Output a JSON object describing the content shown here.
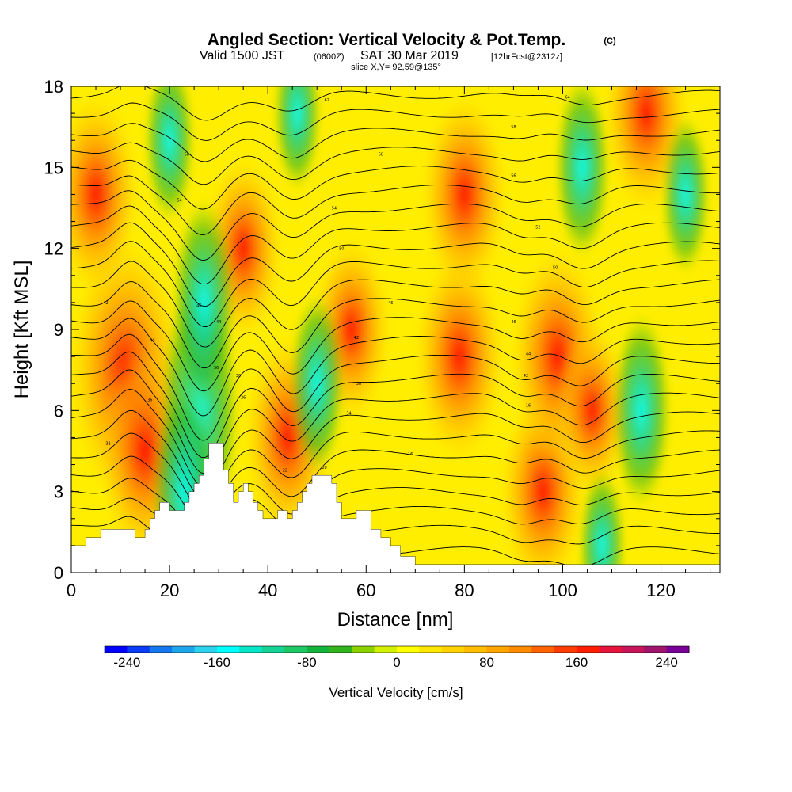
{
  "title": {
    "main": "Angled Section: Vertical Velocity & Pot.Temp.",
    "copyright": "(C)",
    "valid_a": "Valid 1500 JST",
    "valid_b": "(0600Z)",
    "valid_c": "SAT 30 Mar 2019",
    "valid_d": "[12hrFcst@2312z]",
    "slice": "slice X,Y= 92,59@135°"
  },
  "chart_data": {
    "type": "heatmap",
    "xlabel": "Distance [nm]",
    "ylabel": "Height [Kft MSL]",
    "xlim": [
      0,
      132
    ],
    "ylim": [
      0,
      18
    ],
    "x_ticks": [
      "0",
      "20",
      "40",
      "60",
      "80",
      "100",
      "120"
    ],
    "y_ticks": [
      "0",
      "3",
      "6",
      "9",
      "12",
      "15",
      "18"
    ],
    "colorbar": {
      "label": "Vertical Velocity [cm/s]",
      "min": -260,
      "max": 260,
      "step": 20,
      "tick_labels": [
        "-240",
        "-160",
        "-80",
        "0",
        "80",
        "160",
        "240"
      ],
      "colors": [
        "#0000ff",
        "#0a3cf5",
        "#1478ee",
        "#1ea6ea",
        "#2cd2ec",
        "#00ffff",
        "#08e6c8",
        "#16d294",
        "#1ec864",
        "#14b43c",
        "#32b41e",
        "#8cd200",
        "#d2f000",
        "#ffff00",
        "#ffe600",
        "#ffd200",
        "#ffbe00",
        "#ffa500",
        "#ff8c00",
        "#ff6400",
        "#ff3c00",
        "#ff1e00",
        "#e6143c",
        "#c8145a",
        "#a0146e",
        "#780096"
      ]
    },
    "terrain_kft": [
      [
        0,
        1.0
      ],
      [
        3,
        1.0
      ],
      [
        3,
        1.3
      ],
      [
        6,
        1.3
      ],
      [
        6,
        1.6
      ],
      [
        13,
        1.6
      ],
      [
        13,
        1.3
      ],
      [
        15,
        1.3
      ],
      [
        15,
        1.6
      ],
      [
        16,
        1.6
      ],
      [
        16,
        2.0
      ],
      [
        17,
        2.0
      ],
      [
        17,
        2.3
      ],
      [
        18,
        2.3
      ],
      [
        18,
        2.6
      ],
      [
        20,
        2.6
      ],
      [
        20,
        2.3
      ],
      [
        23,
        2.3
      ],
      [
        23,
        2.6
      ],
      [
        24,
        2.6
      ],
      [
        24,
        3.0
      ],
      [
        25,
        3.0
      ],
      [
        25,
        3.3
      ],
      [
        26,
        3.3
      ],
      [
        26,
        3.6
      ],
      [
        27,
        3.6
      ],
      [
        27,
        4.2
      ],
      [
        28,
        4.2
      ],
      [
        28,
        4.8
      ],
      [
        31,
        4.8
      ],
      [
        31,
        3.8
      ],
      [
        32,
        3.8
      ],
      [
        32,
        3.3
      ],
      [
        33,
        3.3
      ],
      [
        33,
        2.6
      ],
      [
        34,
        2.6
      ],
      [
        34,
        3.0
      ],
      [
        35,
        3.0
      ],
      [
        35,
        3.3
      ],
      [
        36,
        3.3
      ],
      [
        36,
        3.0
      ],
      [
        37,
        3.0
      ],
      [
        37,
        2.6
      ],
      [
        38,
        2.6
      ],
      [
        38,
        2.3
      ],
      [
        39,
        2.3
      ],
      [
        39,
        2.0
      ],
      [
        42,
        2.0
      ],
      [
        42,
        2.3
      ],
      [
        44,
        2.3
      ],
      [
        44,
        2.0
      ],
      [
        45,
        2.0
      ],
      [
        45,
        2.3
      ],
      [
        46,
        2.3
      ],
      [
        46,
        2.6
      ],
      [
        47,
        2.6
      ],
      [
        47,
        3.0
      ],
      [
        48,
        3.0
      ],
      [
        48,
        3.3
      ],
      [
        49,
        3.3
      ],
      [
        49,
        3.6
      ],
      [
        53,
        3.6
      ],
      [
        53,
        3.3
      ],
      [
        54,
        3.3
      ],
      [
        54,
        2.6
      ],
      [
        55,
        2.6
      ],
      [
        55,
        2.0
      ],
      [
        58,
        2.0
      ],
      [
        58,
        2.3
      ],
      [
        61,
        2.3
      ],
      [
        61,
        1.6
      ],
      [
        63,
        1.6
      ],
      [
        63,
        1.3
      ],
      [
        65,
        1.3
      ],
      [
        65,
        1.0
      ],
      [
        67,
        1.0
      ],
      [
        67,
        0.6
      ],
      [
        70,
        0.6
      ],
      [
        70,
        0.3
      ],
      [
        132,
        0.3
      ]
    ],
    "updrafts": [
      {
        "x": 11,
        "y": 7.5,
        "w": 160
      },
      {
        "x": 15,
        "y": 4.5,
        "w": 110
      },
      {
        "x": 5,
        "y": 14,
        "w": 90
      },
      {
        "x": 35,
        "y": 12,
        "w": 70
      },
      {
        "x": 44,
        "y": 5,
        "w": 90
      },
      {
        "x": 57,
        "y": 9,
        "w": 70
      },
      {
        "x": 79,
        "y": 8,
        "w": 100
      },
      {
        "x": 80,
        "y": 14,
        "w": 90
      },
      {
        "x": 96,
        "y": 3,
        "w": 90
      },
      {
        "x": 99,
        "y": 8,
        "w": 110
      },
      {
        "x": 117,
        "y": 17,
        "w": 90
      },
      {
        "x": 106,
        "y": 6,
        "w": 60
      }
    ],
    "downdrafts": [
      {
        "x": 26,
        "y": 6,
        "w": -160
      },
      {
        "x": 23,
        "y": 3,
        "w": -110
      },
      {
        "x": 27,
        "y": 10,
        "w": -100
      },
      {
        "x": 50,
        "y": 7,
        "w": -70
      },
      {
        "x": 20,
        "y": 16,
        "w": -50
      },
      {
        "x": 104,
        "y": 15,
        "w": -70
      },
      {
        "x": 116,
        "y": 6,
        "w": -85
      },
      {
        "x": 125,
        "y": 14,
        "w": -45
      },
      {
        "x": 46,
        "y": 17,
        "w": -40
      },
      {
        "x": 108,
        "y": 1,
        "w": -40
      }
    ],
    "isentropes": {
      "levels_kft": [
        0.8,
        1.6,
        2.3,
        3.0,
        3.7,
        4.4,
        5.1,
        5.8,
        6.5,
        7.2,
        7.9,
        8.6,
        9.3,
        10.0,
        10.7,
        11.4,
        12.1,
        12.8,
        13.5,
        14.2,
        14.9,
        15.6,
        16.3,
        17.0,
        17.7
      ],
      "dips": [
        {
          "x": 27,
          "s": 6,
          "d": 3.0
        },
        {
          "x": 45,
          "s": 6,
          "d": 2.0
        },
        {
          "x": 12,
          "s": 4,
          "d": -1.0
        },
        {
          "x": 92,
          "s": 5,
          "d": 0.6
        },
        {
          "x": 104,
          "s": 6,
          "d": 1.0
        }
      ],
      "labels": [
        {
          "x": 7,
          "y": 10.0,
          "t": "42"
        },
        {
          "x": 16.5,
          "y": 8.6,
          "t": "40"
        },
        {
          "x": 16,
          "y": 6.4,
          "t": "36"
        },
        {
          "x": 7.5,
          "y": 4.8,
          "t": "32"
        },
        {
          "x": 23.5,
          "y": 15.5,
          "t": "58"
        },
        {
          "x": 22,
          "y": 13.8,
          "t": "54"
        },
        {
          "x": 26,
          "y": 9.9,
          "t": "46"
        },
        {
          "x": 30,
          "y": 9.3,
          "t": "44"
        },
        {
          "x": 29.5,
          "y": 7.6,
          "t": "36"
        },
        {
          "x": 34,
          "y": 7.3,
          "t": "30"
        },
        {
          "x": 35,
          "y": 6.5,
          "t": "26"
        },
        {
          "x": 43.5,
          "y": 3.8,
          "t": "22"
        },
        {
          "x": 51.5,
          "y": 3.9,
          "t": "20"
        },
        {
          "x": 52,
          "y": 17.5,
          "t": "62"
        },
        {
          "x": 63,
          "y": 15.5,
          "t": "58"
        },
        {
          "x": 53.5,
          "y": 13.5,
          "t": "54"
        },
        {
          "x": 55,
          "y": 12.0,
          "t": "50"
        },
        {
          "x": 65,
          "y": 10.0,
          "t": "46"
        },
        {
          "x": 58,
          "y": 8.7,
          "t": "42"
        },
        {
          "x": 58.5,
          "y": 7.0,
          "t": "38"
        },
        {
          "x": 56.5,
          "y": 5.9,
          "t": "34"
        },
        {
          "x": 69,
          "y": 4.4,
          "t": "16"
        },
        {
          "x": 90,
          "y": 16.5,
          "t": "58"
        },
        {
          "x": 90,
          "y": 14.7,
          "t": "56"
        },
        {
          "x": 95,
          "y": 12.8,
          "t": "52"
        },
        {
          "x": 98.5,
          "y": 11.3,
          "t": "50"
        },
        {
          "x": 90,
          "y": 9.3,
          "t": "46"
        },
        {
          "x": 93,
          "y": 8.1,
          "t": "44"
        },
        {
          "x": 92.5,
          "y": 7.3,
          "t": "42"
        },
        {
          "x": 93,
          "y": 6.2,
          "t": "16"
        },
        {
          "x": 101,
          "y": 17.6,
          "t": "64"
        }
      ]
    }
  }
}
